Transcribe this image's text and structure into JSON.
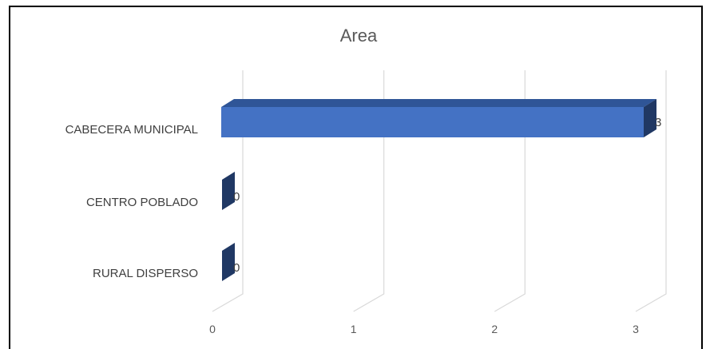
{
  "chart_data": {
    "type": "bar",
    "orientation": "horizontal",
    "style": "3d",
    "title": "Area",
    "categories": [
      "CABECERA MUNICIPAL",
      "CENTRO POBLADO",
      "RURAL DISPERSO"
    ],
    "series": [
      {
        "values": [
          3,
          0,
          0
        ]
      }
    ],
    "xlim": [
      0,
      3
    ],
    "xticks": [
      "0",
      "1",
      "2",
      "3"
    ],
    "data_labels": [
      "3",
      "0",
      "0"
    ],
    "grid": true,
    "legend": "none",
    "colors": {
      "bar_front": "#4472C4",
      "bar_top": "#2F5597",
      "bar_side": "#203864",
      "gridline": "#D9D9D9"
    }
  }
}
